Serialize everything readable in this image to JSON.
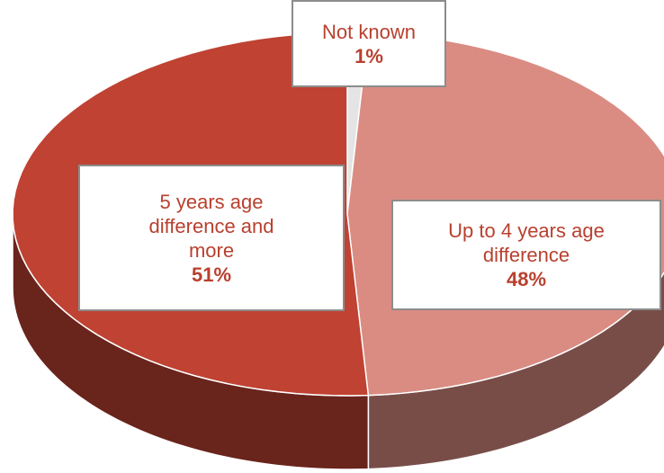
{
  "chart_data": {
    "type": "pie3d",
    "categories": [
      "Not known",
      "Up to 4 years age difference",
      "5 years age difference and more"
    ],
    "values": [
      1,
      48,
      51
    ],
    "value_labels": [
      "1%",
      "48%",
      "51%"
    ],
    "colors": [
      "#e4e4e4",
      "#da8c83",
      "#bf4232"
    ]
  }
}
